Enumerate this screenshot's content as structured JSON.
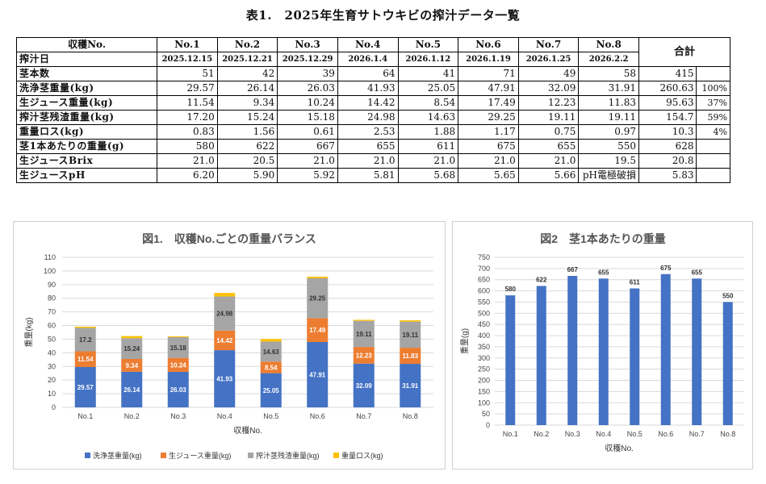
{
  "title": "表1.　2025年生育サトウキビの搾汁データ一覧",
  "table": {
    "header_label": "収穫No.",
    "date_label": "搾汁日",
    "total_label": "合計",
    "harvest_nos": [
      "No.1",
      "No.2",
      "No.3",
      "No.4",
      "No.5",
      "No.6",
      "No.7",
      "No.8"
    ],
    "dates": [
      "2025.12.15",
      "2025.12.21",
      "2025.12.29",
      "2026.1.4",
      "2026.1.12",
      "2026.1.19",
      "2026.1.25",
      "2026.2.2"
    ],
    "rows": [
      {
        "label": "茎本数",
        "values": [
          "51",
          "42",
          "39",
          "64",
          "41",
          "71",
          "49",
          "58"
        ],
        "total": "415",
        "pct": ""
      },
      {
        "label": "洗浄茎重量(kg)",
        "values": [
          "29.57",
          "26.14",
          "26.03",
          "41.93",
          "25.05",
          "47.91",
          "32.09",
          "31.91"
        ],
        "total": "260.63",
        "pct": "100%"
      },
      {
        "label": "生ジュース重量(kg)",
        "values": [
          "11.54",
          "9.34",
          "10.24",
          "14.42",
          "8.54",
          "17.49",
          "12.23",
          "11.83"
        ],
        "total": "95.63",
        "pct": "37%"
      },
      {
        "label": "搾汁茎残渣重量(kg)",
        "values": [
          "17.20",
          "15.24",
          "15.18",
          "24.98",
          "14.63",
          "29.25",
          "19.11",
          "19.11"
        ],
        "total": "154.7",
        "pct": "59%"
      },
      {
        "label": "重量ロス(kg)",
        "values": [
          "0.83",
          "1.56",
          "0.61",
          "2.53",
          "1.88",
          "1.17",
          "0.75",
          "0.97"
        ],
        "total": "10.3",
        "pct": "4%"
      },
      {
        "label": "茎1本あたりの重量(g)",
        "values": [
          "580",
          "622",
          "667",
          "655",
          "611",
          "675",
          "655",
          "550"
        ],
        "total": "628",
        "pct": ""
      },
      {
        "label": "生ジュースBrix",
        "values": [
          "21.0",
          "20.5",
          "21.0",
          "21.0",
          "21.0",
          "21.0",
          "21.0",
          "19.5"
        ],
        "total": "20.8",
        "pct": ""
      },
      {
        "label": "生ジュースpH",
        "values": [
          "6.20",
          "5.90",
          "5.92",
          "5.81",
          "5.68",
          "5.65",
          "5.66",
          "pH電極破損"
        ],
        "total": "5.83",
        "pct": ""
      }
    ]
  },
  "chart_data": [
    {
      "type": "bar",
      "stacked": true,
      "title": "図1.　収穫No.ごとの重量バランス",
      "xlabel": "収穫No.",
      "ylabel": "重量(kg)",
      "ylim": [
        0,
        110
      ],
      "yticks": [
        0,
        10,
        20,
        30,
        40,
        50,
        60,
        70,
        80,
        90,
        100,
        110
      ],
      "grid": true,
      "legend_position": "bottom",
      "categories": [
        "No.1",
        "No.2",
        "No.3",
        "No.4",
        "No.5",
        "No.6",
        "No.7",
        "No.8"
      ],
      "series": [
        {
          "name": "洗浄茎重量(kg)",
          "color": "#4472C4",
          "values": [
            29.57,
            26.14,
            26.03,
            41.93,
            25.05,
            47.91,
            32.09,
            31.91
          ],
          "label_color": "#ffffff"
        },
        {
          "name": "生ジュース重量(kg)",
          "color": "#ED7D31",
          "values": [
            11.54,
            9.34,
            10.24,
            14.42,
            8.54,
            17.49,
            12.23,
            11.83
          ],
          "label_color": "#ffffff"
        },
        {
          "name": "搾汁茎残渣重量(kg)",
          "color": "#A5A5A5",
          "values": [
            17.2,
            15.24,
            15.18,
            24.98,
            14.63,
            29.25,
            19.11,
            19.11
          ],
          "label_color": "#333333"
        },
        {
          "name": "重量ロス(kg)",
          "color": "#FFC000",
          "values": [
            0.83,
            1.56,
            0.61,
            2.53,
            1.88,
            1.17,
            0.75,
            0.97
          ],
          "label_color": ""
        }
      ],
      "labeled_series": [
        0,
        1,
        2
      ]
    },
    {
      "type": "bar",
      "title": "図2　茎1本あたりの重量",
      "xlabel": "収穫No.",
      "ylabel": "重量(g)",
      "ylim": [
        0,
        750
      ],
      "yticks": [
        0,
        50,
        100,
        150,
        200,
        250,
        300,
        350,
        400,
        450,
        500,
        550,
        600,
        650,
        700,
        750
      ],
      "grid": true,
      "categories": [
        "No.1",
        "No.2",
        "No.3",
        "No.4",
        "No.5",
        "No.6",
        "No.7",
        "No.8"
      ],
      "values": [
        580,
        622,
        667,
        655,
        611,
        675,
        655,
        550
      ],
      "color": "#4472C4"
    }
  ]
}
